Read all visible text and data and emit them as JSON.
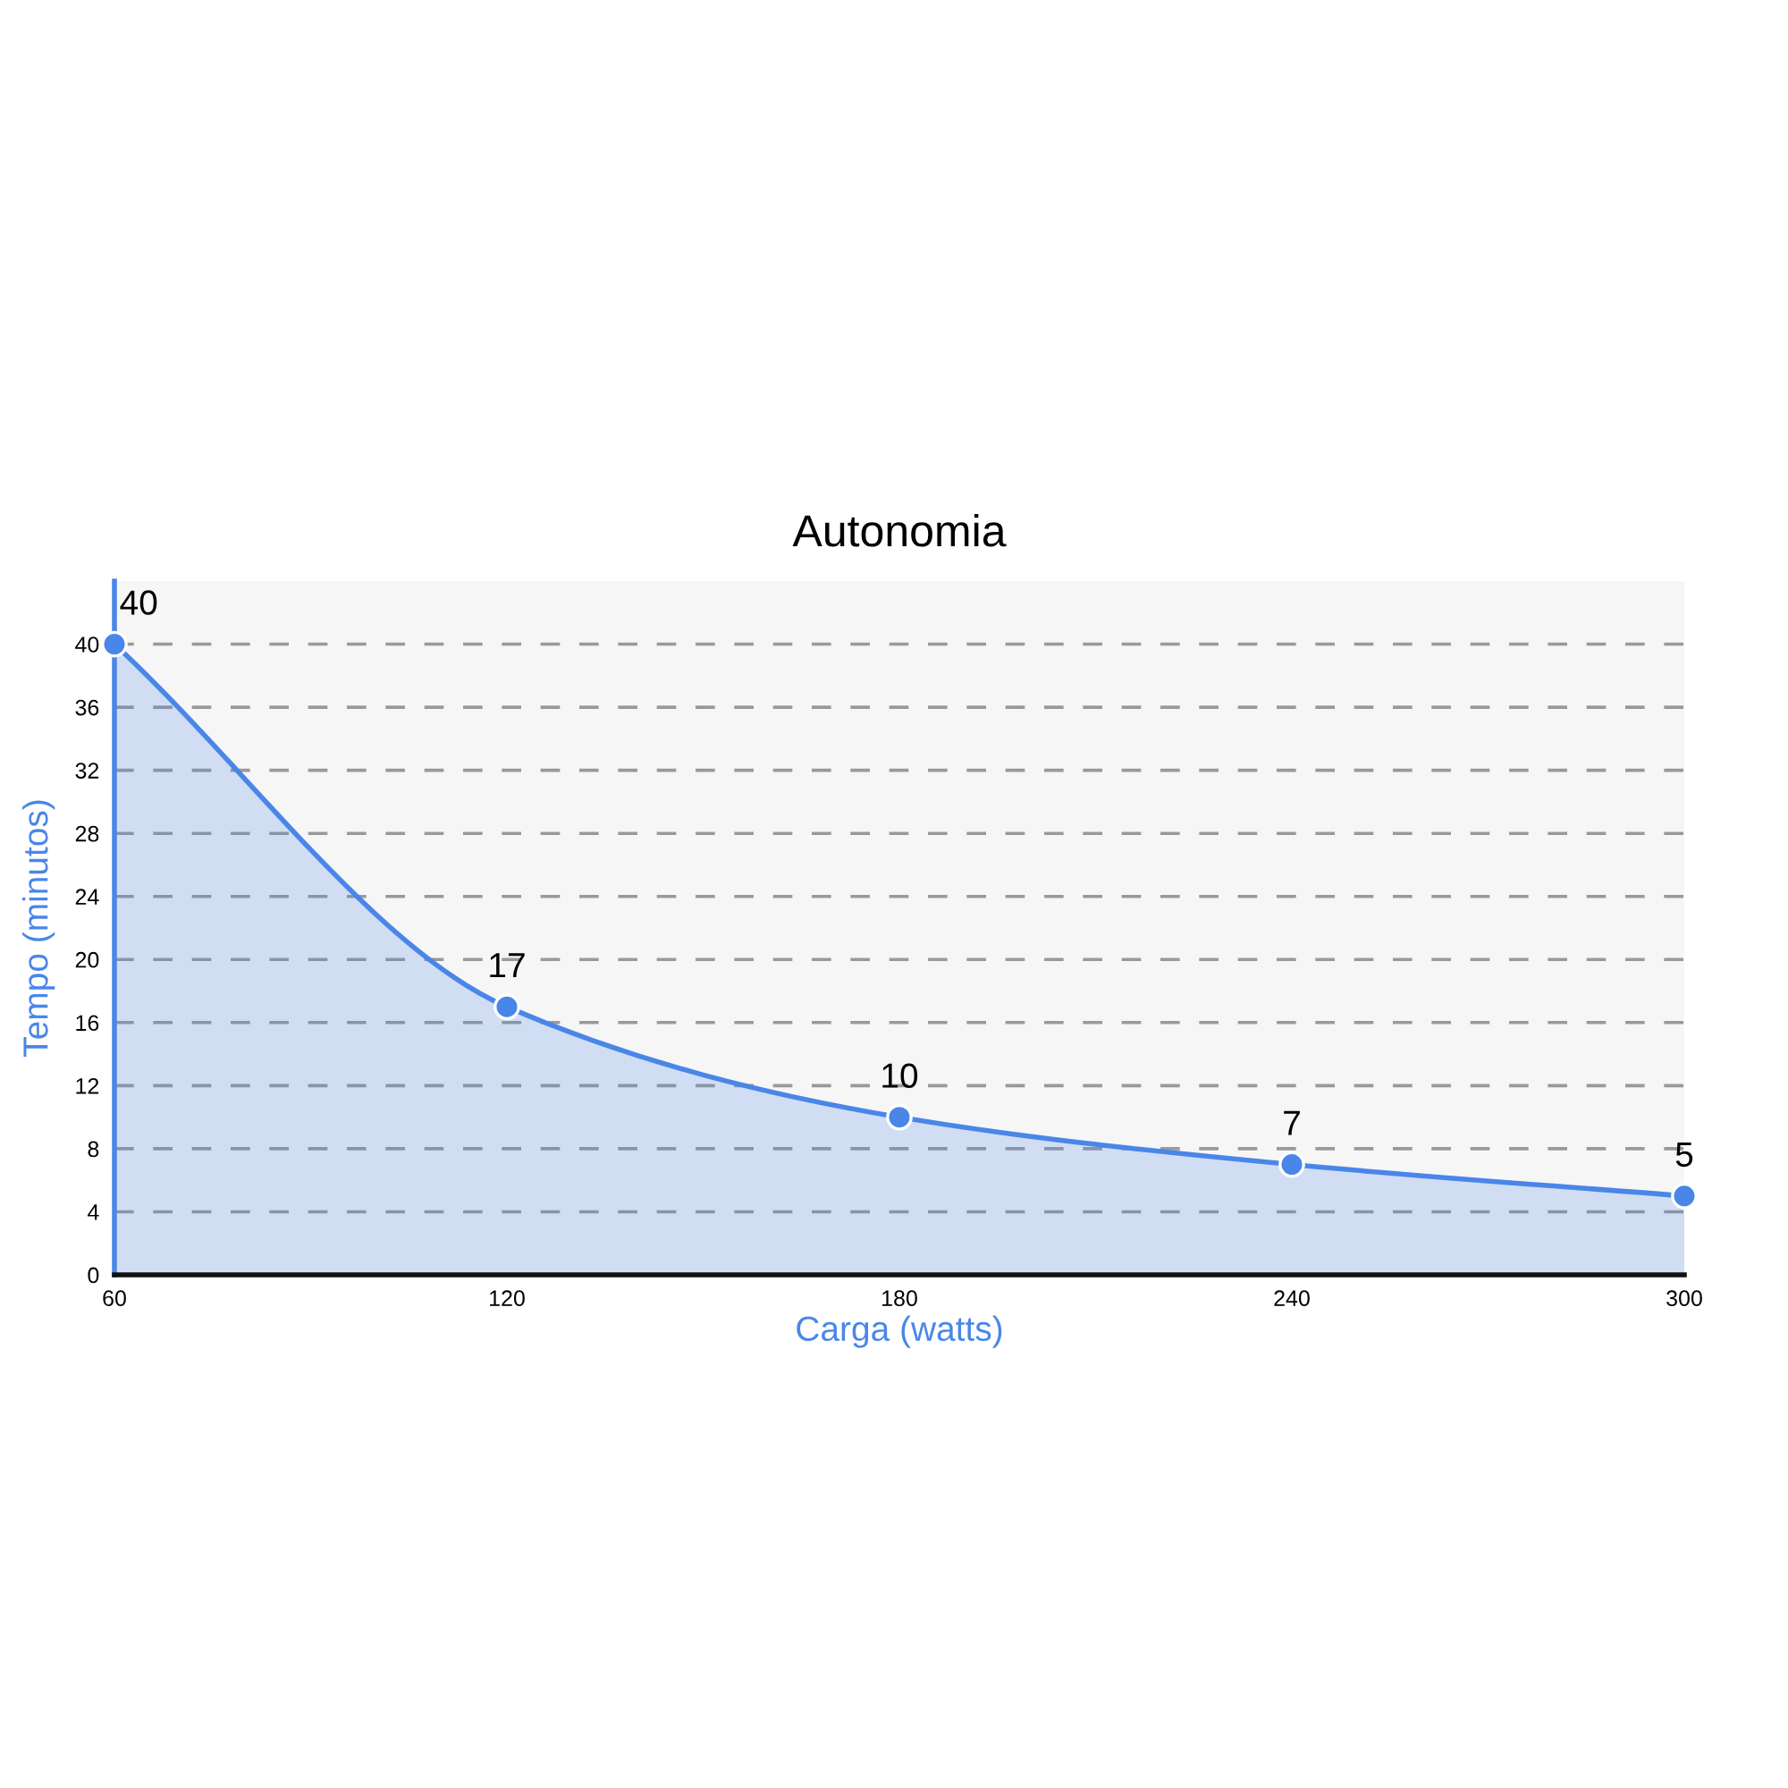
{
  "chart_data": {
    "type": "area",
    "title": "Autonomia",
    "xlabel": "Carga (watts)",
    "ylabel": "Tempo (minutos)",
    "x": [
      60,
      120,
      180,
      240,
      300
    ],
    "values": [
      40,
      17,
      10,
      7,
      5
    ],
    "color": "#4a86e8",
    "xlim": [
      60,
      300
    ],
    "xticks": [
      60,
      120,
      180,
      240,
      300
    ],
    "ylim": [
      0,
      44
    ],
    "yticks": [
      0,
      4,
      8,
      12,
      16,
      20,
      24,
      28,
      32,
      36,
      40
    ],
    "grid": "y",
    "marker": "circle",
    "line_style": "solid",
    "data_labels": true
  }
}
